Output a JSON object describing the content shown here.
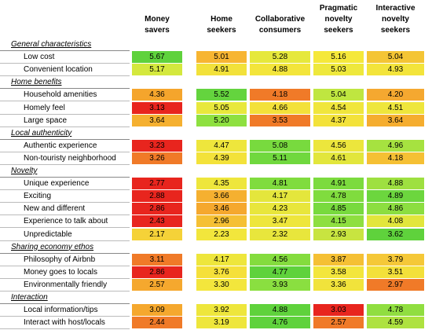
{
  "table": {
    "headers": [
      "Money savers",
      "Home seekers",
      "Collaborative consumers",
      "Pragmatic novelty seekers",
      "Interactive novelty seekers"
    ],
    "sections": [
      {
        "title": "General characteristics",
        "rows": [
          {
            "label": "Low cost",
            "values": [
              "5.67",
              "5.01",
              "5.28",
              "5.16",
              "5.04"
            ],
            "colors": [
              "#5fd23c",
              "#f7b532",
              "#e6e83c",
              "#f5e83a",
              "#f4c535"
            ]
          },
          {
            "label": "Convenient location",
            "values": [
              "5.17",
              "4.91",
              "4.88",
              "5.03",
              "4.93"
            ],
            "colors": [
              "#d4e83e",
              "#f2e13a",
              "#f3e53b",
              "#eee83c",
              "#f3e43b"
            ]
          }
        ]
      },
      {
        "title": "Home benefits",
        "rows": [
          {
            "label": "Household amenities",
            "values": [
              "4.36",
              "5.52",
              "4.18",
              "5.04",
              "4.20"
            ],
            "colors": [
              "#f5a52c",
              "#64d43e",
              "#f07a28",
              "#bfe640",
              "#f5a830"
            ]
          },
          {
            "label": "Homely feel",
            "values": [
              "3.13",
              "5.05",
              "4.66",
              "4.54",
              "4.51"
            ],
            "colors": [
              "#e8251e",
              "#e8e83c",
              "#f3e13a",
              "#f0e63c",
              "#eee63c"
            ]
          },
          {
            "label": "Large space",
            "values": [
              "3.64",
              "5.20",
              "3.53",
              "4.37",
              "3.64"
            ],
            "colors": [
              "#f5b030",
              "#8ee040",
              "#f07a28",
              "#f3e23a",
              "#f5ad2f"
            ]
          }
        ]
      },
      {
        "title": "Local authenticity",
        "rows": [
          {
            "label": "Authentic experience",
            "values": [
              "3.23",
              "4.47",
              "5.08",
              "4.56",
              "4.96"
            ],
            "colors": [
              "#e8251e",
              "#eee63c",
              "#78da3e",
              "#ece63c",
              "#a6e240"
            ]
          },
          {
            "label": "Non-touristy neighborhood",
            "values": [
              "3.26",
              "4.39",
              "5.11",
              "4.61",
              "4.18"
            ],
            "colors": [
              "#f07a28",
              "#f3e23a",
              "#70d83e",
              "#e2e63c",
              "#f5c034"
            ]
          }
        ]
      },
      {
        "title": "Novelty",
        "rows": [
          {
            "label": "Unique experience",
            "values": [
              "2.77",
              "4.35",
              "4.81",
              "4.91",
              "4.88"
            ],
            "colors": [
              "#e8251e",
              "#eee63c",
              "#80dc3e",
              "#7cdb3e",
              "#9ee040"
            ]
          },
          {
            "label": "Exciting",
            "values": [
              "2.88",
              "3.66",
              "4.17",
              "4.78",
              "4.89"
            ],
            "colors": [
              "#e8251e",
              "#f5b030",
              "#e4e63c",
              "#80dc3e",
              "#6cd63e"
            ]
          },
          {
            "label": "New and different",
            "values": [
              "2.86",
              "3.46",
              "4.23",
              "4.85",
              "4.86"
            ],
            "colors": [
              "#e8251e",
              "#f5a82e",
              "#e8e63c",
              "#78da3e",
              "#8cde40"
            ]
          },
          {
            "label": "Experience to talk about",
            "values": [
              "2.43",
              "2.96",
              "3.47",
              "4.15",
              "4.08"
            ],
            "colors": [
              "#e8251e",
              "#f5c034",
              "#eee63c",
              "#8edf40",
              "#e2e63c"
            ]
          },
          {
            "label": "Unpredictable",
            "values": [
              "2.17",
              "2.23",
              "2.32",
              "2.93",
              "3.62"
            ],
            "colors": [
              "#f5d238",
              "#f2e63c",
              "#e8e63c",
              "#c8e440",
              "#5fd23c"
            ]
          }
        ]
      },
      {
        "title": "Sharing economy ethos",
        "rows": [
          {
            "label": "Philosophy of Airbnb",
            "values": [
              "3.11",
              "4.17",
              "4.56",
              "3.87",
              "3.79"
            ],
            "colors": [
              "#f07a28",
              "#eee63c",
              "#84dc3e",
              "#f5c034",
              "#f5c838"
            ]
          },
          {
            "label": "Money goes to locals",
            "values": [
              "2.86",
              "3.76",
              "4.77",
              "3.58",
              "3.51"
            ],
            "colors": [
              "#e8251e",
              "#f5e03a",
              "#5fd23c",
              "#f3e63c",
              "#f3e03a"
            ]
          },
          {
            "label": "Environmentally friendly",
            "values": [
              "2.57",
              "3.30",
              "3.93",
              "3.36",
              "2.97"
            ],
            "colors": [
              "#f5a82e",
              "#f3e63c",
              "#8adf40",
              "#f1e33b",
              "#f07a28"
            ]
          }
        ]
      },
      {
        "title": "Interaction",
        "rows": [
          {
            "label": "Local information/tips",
            "values": [
              "3.09",
              "3.92",
              "4.88",
              "3.03",
              "4.78"
            ],
            "colors": [
              "#f5a82e",
              "#eee63c",
              "#5fd23c",
              "#e8251e",
              "#90de40"
            ]
          },
          {
            "label": "Interact with host/locals",
            "values": [
              "2.44",
              "3.19",
              "4.76",
              "2.57",
              "4.59"
            ],
            "colors": [
              "#f07a28",
              "#eee63c",
              "#5fd23c",
              "#f07a28",
              "#aee240"
            ]
          }
        ]
      }
    ]
  }
}
